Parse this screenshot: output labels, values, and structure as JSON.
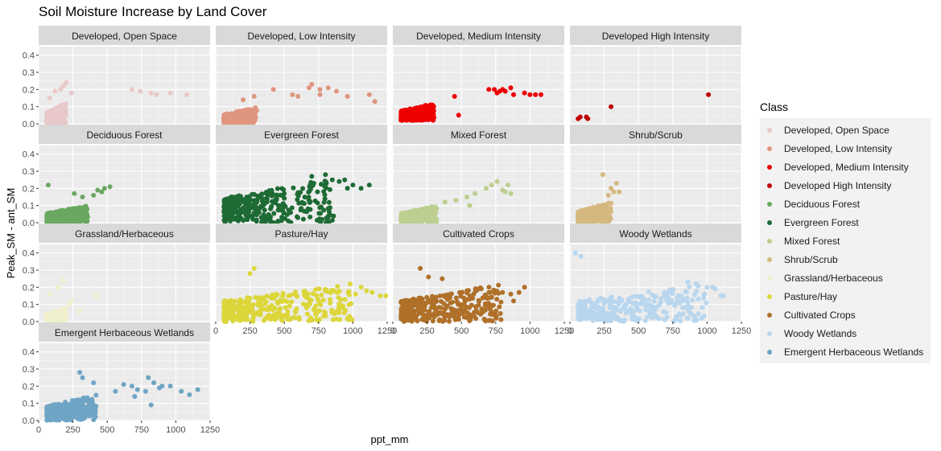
{
  "chart_data": {
    "type": "scatter",
    "title": "Soil Moisture Increase by Land Cover",
    "xlabel": "ppt_mm",
    "ylabel": "Peak_SM - ant_SM",
    "xlim": [
      0,
      1250
    ],
    "ylim": [
      0,
      0.45
    ],
    "x_ticks": [
      0,
      250,
      500,
      750,
      1000,
      1250
    ],
    "y_ticks": [
      0.0,
      0.1,
      0.2,
      0.3,
      0.4
    ],
    "y_tick_labels": [
      "0.0",
      "0.1",
      "0.2",
      "0.3",
      "0.4"
    ],
    "grid": true,
    "legend_title": "Class",
    "legend_position": "right",
    "panels": [
      {
        "name": "Developed, Open Space",
        "color": "#e8c8c8",
        "dense": {
          "x": [
            60,
            200
          ],
          "y": [
            0.0,
            0.12
          ]
        },
        "points": [
          [
            80,
            0.15
          ],
          [
            120,
            0.19
          ],
          [
            160,
            0.2
          ],
          [
            200,
            0.24
          ],
          [
            240,
            0.18
          ],
          [
            180,
            0.22
          ],
          [
            680,
            0.2
          ],
          [
            740,
            0.19
          ],
          [
            820,
            0.18
          ],
          [
            860,
            0.17
          ],
          [
            960,
            0.18
          ],
          [
            1080,
            0.17
          ]
        ]
      },
      {
        "name": "Developed, Low Intensity",
        "color": "#e0957e",
        "dense": {
          "x": [
            60,
            300
          ],
          "y": [
            0.0,
            0.1
          ]
        },
        "points": [
          [
            200,
            0.14
          ],
          [
            280,
            0.16
          ],
          [
            420,
            0.2
          ],
          [
            680,
            0.21
          ],
          [
            700,
            0.23
          ],
          [
            760,
            0.2
          ],
          [
            820,
            0.21
          ],
          [
            880,
            0.19
          ],
          [
            960,
            0.16
          ],
          [
            760,
            0.17
          ],
          [
            1120,
            0.17
          ],
          [
            1160,
            0.13
          ],
          [
            560,
            0.17
          ],
          [
            600,
            0.16
          ]
        ]
      },
      {
        "name": "Developed, Medium Intensity",
        "color": "#ee0000",
        "dense": {
          "x": [
            60,
            300
          ],
          "y": [
            0.02,
            0.12
          ]
        },
        "points": [
          [
            480,
            0.05
          ],
          [
            450,
            0.16
          ],
          [
            700,
            0.2
          ],
          [
            740,
            0.2
          ],
          [
            780,
            0.19
          ],
          [
            820,
            0.19
          ],
          [
            860,
            0.21
          ],
          [
            880,
            0.17
          ],
          [
            960,
            0.18
          ],
          [
            1000,
            0.17
          ],
          [
            1040,
            0.17
          ],
          [
            1080,
            0.17
          ],
          [
            760,
            0.18
          ],
          [
            800,
            0.2
          ]
        ]
      },
      {
        "name": "Developed High Intensity",
        "color": "#c00000",
        "dense": null,
        "points": [
          [
            60,
            0.03
          ],
          [
            75,
            0.04
          ],
          [
            120,
            0.04
          ],
          [
            130,
            0.03
          ],
          [
            300,
            0.1
          ],
          [
            1010,
            0.17
          ]
        ]
      },
      {
        "name": "Deciduous Forest",
        "color": "#6aa861",
        "dense": {
          "x": [
            60,
            360
          ],
          "y": [
            0.0,
            0.1
          ]
        },
        "points": [
          [
            70,
            0.22
          ],
          [
            260,
            0.17
          ],
          [
            320,
            0.15
          ],
          [
            400,
            0.16
          ],
          [
            430,
            0.19
          ],
          [
            480,
            0.2
          ],
          [
            520,
            0.21
          ],
          [
            460,
            0.18
          ]
        ]
      },
      {
        "name": "Evergreen Forest",
        "color": "#1e6b35",
        "dense": {
          "x": [
            60,
            860
          ],
          "y": [
            0.0,
            0.26
          ]
        },
        "points": [
          [
            800,
            0.28
          ],
          [
            850,
            0.25
          ],
          [
            900,
            0.24
          ],
          [
            960,
            0.2
          ],
          [
            1000,
            0.22
          ],
          [
            1060,
            0.2
          ],
          [
            1120,
            0.22
          ],
          [
            700,
            0.27
          ],
          [
            940,
            0.25
          ]
        ]
      },
      {
        "name": "Mixed Forest",
        "color": "#bccf90",
        "dense": {
          "x": [
            60,
            320
          ],
          "y": [
            0.0,
            0.1
          ]
        },
        "points": [
          [
            380,
            0.12
          ],
          [
            460,
            0.13
          ],
          [
            540,
            0.15
          ],
          [
            600,
            0.17
          ],
          [
            680,
            0.2
          ],
          [
            720,
            0.22
          ],
          [
            760,
            0.24
          ],
          [
            800,
            0.19
          ],
          [
            820,
            0.18
          ],
          [
            840,
            0.22
          ],
          [
            860,
            0.17
          ],
          [
            560,
            0.1
          ]
        ]
      },
      {
        "name": "Shrub/Scrub",
        "color": "#d4b87f",
        "dense": {
          "x": [
            60,
            300
          ],
          "y": [
            0.0,
            0.12
          ]
        },
        "points": [
          [
            240,
            0.28
          ],
          [
            300,
            0.2
          ],
          [
            320,
            0.18
          ],
          [
            340,
            0.23
          ],
          [
            360,
            0.18
          ],
          [
            280,
            0.16
          ]
        ]
      },
      {
        "name": "Grassland/Herbaceous",
        "color": "#f0f0cc",
        "dense": {
          "x": [
            60,
            200
          ],
          "y": [
            0.0,
            0.08
          ]
        },
        "points": [
          [
            80,
            0.16
          ],
          [
            140,
            0.2
          ],
          [
            180,
            0.24
          ],
          [
            240,
            0.12
          ],
          [
            300,
            0.06
          ],
          [
            420,
            0.15
          ],
          [
            220,
            0.1
          ]
        ]
      },
      {
        "name": "Pasture/Hay",
        "color": "#dcd63a",
        "dense": {
          "x": [
            60,
            1000
          ],
          "y": [
            0.0,
            0.22
          ]
        },
        "points": [
          [
            280,
            0.31
          ],
          [
            250,
            0.28
          ],
          [
            1060,
            0.2
          ],
          [
            1100,
            0.18
          ],
          [
            1140,
            0.17
          ],
          [
            1200,
            0.15
          ],
          [
            1240,
            0.15
          ],
          [
            980,
            0.22
          ],
          [
            1020,
            0.16
          ]
        ]
      },
      {
        "name": "Cultivated Crops",
        "color": "#b07029",
        "dense": {
          "x": [
            60,
            800
          ],
          "y": [
            0.0,
            0.22
          ]
        },
        "points": [
          [
            200,
            0.31
          ],
          [
            260,
            0.26
          ],
          [
            360,
            0.25
          ],
          [
            700,
            0.17
          ],
          [
            800,
            0.17
          ],
          [
            860,
            0.16
          ],
          [
            920,
            0.17
          ],
          [
            960,
            0.2
          ],
          [
            880,
            0.12
          ]
        ]
      },
      {
        "name": "Woody Wetlands",
        "color": "#b8d6ee",
        "dense": {
          "x": [
            60,
            1000
          ],
          "y": [
            0.0,
            0.22
          ]
        },
        "points": [
          [
            40,
            0.4
          ],
          [
            80,
            0.38
          ],
          [
            1000,
            0.2
          ],
          [
            1040,
            0.2
          ],
          [
            1060,
            0.19
          ],
          [
            1100,
            0.15
          ],
          [
            1120,
            0.15
          ],
          [
            860,
            0.23
          ],
          [
            920,
            0.22
          ]
        ]
      },
      {
        "name": "Emergent Herbaceous Wetlands",
        "color": "#6ea4c4",
        "dense": {
          "x": [
            60,
            420
          ],
          "y": [
            0.0,
            0.15
          ]
        },
        "points": [
          [
            300,
            0.28
          ],
          [
            320,
            0.25
          ],
          [
            400,
            0.22
          ],
          [
            560,
            0.17
          ],
          [
            620,
            0.21
          ],
          [
            680,
            0.2
          ],
          [
            720,
            0.18
          ],
          [
            780,
            0.17
          ],
          [
            800,
            0.25
          ],
          [
            840,
            0.22
          ],
          [
            900,
            0.2
          ],
          [
            960,
            0.2
          ],
          [
            1040,
            0.17
          ],
          [
            1100,
            0.15
          ],
          [
            1160,
            0.18
          ],
          [
            820,
            0.09
          ],
          [
            700,
            0.14
          ],
          [
            880,
            0.19
          ]
        ]
      }
    ],
    "x_axis_panels": [
      9,
      10,
      11,
      12
    ]
  }
}
